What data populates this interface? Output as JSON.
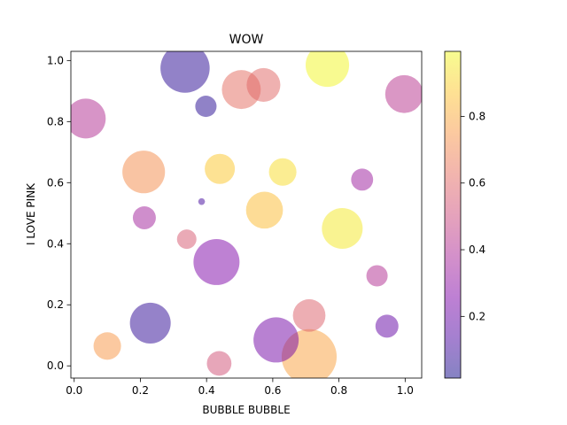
{
  "chart_data": {
    "type": "scatter",
    "title": "WOW",
    "xlabel": "BUBBLE BUBBLE",
    "ylabel": "I LOVE PINK",
    "xlim": [
      -0.01,
      1.05
    ],
    "ylim": [
      -0.04,
      1.03
    ],
    "xticks": [
      0.0,
      0.2,
      0.4,
      0.6,
      0.8,
      1.0
    ],
    "xtick_labels": [
      "0.0",
      "0.2",
      "0.4",
      "0.6",
      "0.8",
      "1.0"
    ],
    "yticks": [
      0.0,
      0.2,
      0.4,
      0.6,
      0.8,
      1.0
    ],
    "ytick_labels": [
      "0.0",
      "0.2",
      "0.4",
      "0.6",
      "0.8",
      "1.0"
    ],
    "grid": false,
    "alpha": 0.5,
    "colormap": "plasma",
    "colorbar": {
      "range": [
        0.015,
        0.995
      ],
      "ticks": [
        0.2,
        0.4,
        0.6,
        0.8
      ],
      "tick_labels": [
        "0.2",
        "0.4",
        "0.6",
        "0.8"
      ]
    },
    "points": [
      {
        "x": 0.71,
        "y": 0.03,
        "size": 2000,
        "color": 0.78
      },
      {
        "x": 0.335,
        "y": 0.975,
        "size": 1600,
        "color": 0.05
      },
      {
        "x": 0.765,
        "y": 0.985,
        "size": 1250,
        "color": 0.99
      },
      {
        "x": 0.61,
        "y": 0.085,
        "size": 1350,
        "color": 0.22
      },
      {
        "x": 0.43,
        "y": 0.34,
        "size": 1400,
        "color": 0.25
      },
      {
        "x": 0.21,
        "y": 0.635,
        "size": 1200,
        "color": 0.72
      },
      {
        "x": 0.23,
        "y": 0.14,
        "size": 1100,
        "color": 0.06
      },
      {
        "x": 0.81,
        "y": 0.45,
        "size": 1100,
        "color": 0.96
      },
      {
        "x": 0.505,
        "y": 0.905,
        "size": 1000,
        "color": 0.62
      },
      {
        "x": 0.035,
        "y": 0.81,
        "size": 1050,
        "color": 0.4
      },
      {
        "x": 0.575,
        "y": 0.51,
        "size": 900,
        "color": 0.85
      },
      {
        "x": 0.997,
        "y": 0.89,
        "size": 950,
        "color": 0.42
      },
      {
        "x": 0.572,
        "y": 0.92,
        "size": 750,
        "color": 0.6
      },
      {
        "x": 0.71,
        "y": 0.165,
        "size": 700,
        "color": 0.58
      },
      {
        "x": 0.44,
        "y": 0.645,
        "size": 600,
        "color": 0.88
      },
      {
        "x": 0.63,
        "y": 0.635,
        "size": 500,
        "color": 0.93
      },
      {
        "x": 0.1,
        "y": 0.065,
        "size": 500,
        "color": 0.75
      },
      {
        "x": 0.438,
        "y": 0.008,
        "size": 400,
        "color": 0.52
      },
      {
        "x": 0.212,
        "y": 0.485,
        "size": 350,
        "color": 0.35
      },
      {
        "x": 0.945,
        "y": 0.13,
        "size": 350,
        "color": 0.18
      },
      {
        "x": 0.87,
        "y": 0.61,
        "size": 320,
        "color": 0.33
      },
      {
        "x": 0.915,
        "y": 0.295,
        "size": 300,
        "color": 0.4
      },
      {
        "x": 0.398,
        "y": 0.85,
        "size": 300,
        "color": 0.04
      },
      {
        "x": 0.34,
        "y": 0.415,
        "size": 250,
        "color": 0.55
      },
      {
        "x": 0.385,
        "y": 0.538,
        "size": 30,
        "color": 0.1
      }
    ]
  }
}
